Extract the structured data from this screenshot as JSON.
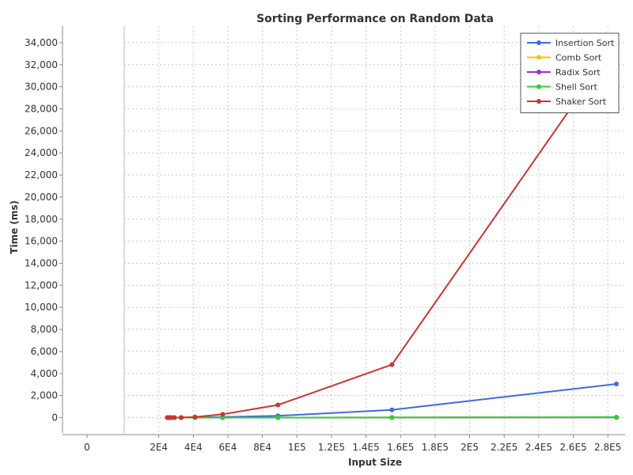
{
  "chart_data": {
    "type": "line",
    "title": "Sorting Performance on Random Data",
    "xlabel": "Input Size",
    "ylabel": "Time (ms)",
    "xlim": [
      0,
      290000
    ],
    "ylim": [
      -1400,
      35500
    ],
    "x_ticks": [
      {
        "v": 0,
        "label": "0"
      },
      {
        "v": 20000,
        "label": "2E4"
      },
      {
        "v": 40000,
        "label": "4E4"
      },
      {
        "v": 60000,
        "label": "6E4"
      },
      {
        "v": 80000,
        "label": "8E4"
      },
      {
        "v": 100000,
        "label": "1E5"
      },
      {
        "v": 120000,
        "label": "1.2E5"
      },
      {
        "v": 140000,
        "label": "1.4E5"
      },
      {
        "v": 160000,
        "label": "1.6E5"
      },
      {
        "v": 180000,
        "label": "1.8E5"
      },
      {
        "v": 200000,
        "label": "2E5"
      },
      {
        "v": 220000,
        "label": "2.2E5"
      },
      {
        "v": 240000,
        "label": "2.4E5"
      },
      {
        "v": 260000,
        "label": "2.6E5"
      },
      {
        "v": 280000,
        "label": "2.8E5"
      }
    ],
    "y_ticks": [
      {
        "v": 0,
        "label": "0"
      },
      {
        "v": 2000,
        "label": "2,000"
      },
      {
        "v": 4000,
        "label": "4,000"
      },
      {
        "v": 6000,
        "label": "6,000"
      },
      {
        "v": 8000,
        "label": "8,000"
      },
      {
        "v": 10000,
        "label": "10,000"
      },
      {
        "v": 12000,
        "label": "12,000"
      },
      {
        "v": 14000,
        "label": "14,000"
      },
      {
        "v": 16000,
        "label": "16,000"
      },
      {
        "v": 18000,
        "label": "18,000"
      },
      {
        "v": 20000,
        "label": "20,000"
      },
      {
        "v": 22000,
        "label": "22,000"
      },
      {
        "v": 24000,
        "label": "24,000"
      },
      {
        "v": 26000,
        "label": "26,000"
      },
      {
        "v": 28000,
        "label": "28,000"
      },
      {
        "v": 30000,
        "label": "30,000"
      },
      {
        "v": 32000,
        "label": "32,000"
      },
      {
        "v": 34000,
        "label": "34,000"
      }
    ],
    "grid": true,
    "legend_position": "top-right",
    "series": [
      {
        "name": "Insertion Sort",
        "color": "#4169e1",
        "x": [
          25000,
          26000,
          27000,
          29000,
          33000,
          41000,
          57000,
          89000,
          155000,
          285000
        ],
        "y": [
          0,
          0,
          0,
          0,
          0,
          20,
          50,
          160,
          700,
          3050
        ]
      },
      {
        "name": "Comb Sort",
        "color": "#ffc000",
        "x": [
          25000,
          26000,
          27000,
          29000,
          33000,
          41000,
          57000,
          89000,
          155000,
          285000
        ],
        "y": [
          0,
          0,
          0,
          0,
          0,
          0,
          0,
          0,
          10,
          30
        ]
      },
      {
        "name": "Radix Sort",
        "color": "#9932cc",
        "x": [
          25000,
          26000,
          27000,
          29000,
          33000,
          41000,
          57000,
          89000,
          155000,
          285000
        ],
        "y": [
          0,
          0,
          0,
          0,
          0,
          0,
          0,
          0,
          10,
          20
        ]
      },
      {
        "name": "Shell Sort",
        "color": "#32cd32",
        "x": [
          25000,
          26000,
          27000,
          29000,
          33000,
          41000,
          57000,
          89000,
          155000,
          285000
        ],
        "y": [
          0,
          0,
          0,
          0,
          0,
          0,
          0,
          0,
          10,
          40
        ]
      },
      {
        "name": "Shaker Sort",
        "color": "#cd3333",
        "x": [
          25000,
          26000,
          27000,
          29000,
          33000,
          41000,
          57000,
          89000,
          155000,
          285000
        ],
        "y": [
          0,
          0,
          0,
          0,
          10,
          50,
          300,
          1150,
          4800,
          34000
        ]
      }
    ]
  }
}
